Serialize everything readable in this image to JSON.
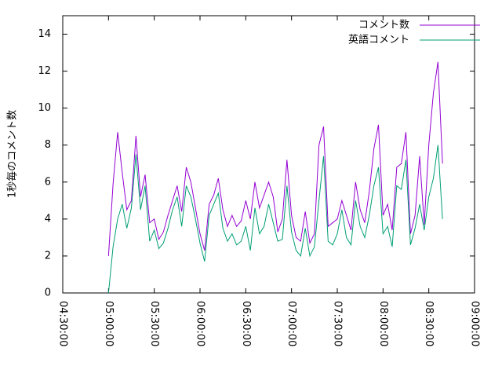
{
  "chart_data": {
    "type": "line",
    "ylabel": "1秒毎のコメント数",
    "x": [
      "05:00:00",
      "05:03:00",
      "05:06:00",
      "05:09:00",
      "05:12:00",
      "05:15:00",
      "05:18:00",
      "05:21:00",
      "05:24:00",
      "05:27:00",
      "05:30:00",
      "05:33:00",
      "05:36:00",
      "05:39:00",
      "05:42:00",
      "05:45:00",
      "05:48:00",
      "05:51:00",
      "05:54:00",
      "05:57:00",
      "06:00:00",
      "06:03:00",
      "06:06:00",
      "06:09:00",
      "06:12:00",
      "06:15:00",
      "06:18:00",
      "06:21:00",
      "06:24:00",
      "06:27:00",
      "06:30:00",
      "06:33:00",
      "06:36:00",
      "06:39:00",
      "06:42:00",
      "06:45:00",
      "06:48:00",
      "06:51:00",
      "06:54:00",
      "06:57:00",
      "07:00:00",
      "07:03:00",
      "07:06:00",
      "07:09:00",
      "07:12:00",
      "07:15:00",
      "07:18:00",
      "07:21:00",
      "07:24:00",
      "07:27:00",
      "07:30:00",
      "07:33:00",
      "07:36:00",
      "07:39:00",
      "07:42:00",
      "07:45:00",
      "07:48:00",
      "07:51:00",
      "07:54:00",
      "07:57:00",
      "08:00:00",
      "08:03:00",
      "08:06:00",
      "08:09:00",
      "08:12:00",
      "08:15:00",
      "08:18:00",
      "08:21:00",
      "08:24:00",
      "08:27:00",
      "08:30:00",
      "08:33:00",
      "08:36:00",
      "08:39:00"
    ],
    "series": [
      {
        "name": "コメント数",
        "color": "#9400d3",
        "values": [
          2.0,
          5.9,
          8.7,
          6.5,
          4.5,
          5.0,
          8.5,
          5.2,
          6.4,
          3.8,
          4.0,
          2.9,
          3.3,
          4.2,
          5.0,
          5.8,
          4.4,
          6.8,
          6.0,
          4.6,
          3.2,
          2.3,
          4.8,
          5.3,
          6.2,
          4.5,
          3.6,
          4.2,
          3.6,
          3.9,
          5.0,
          4.0,
          6.0,
          4.6,
          5.3,
          6.0,
          5.2,
          3.3,
          4.0,
          7.2,
          4.2,
          3.0,
          2.8,
          4.4,
          2.7,
          3.2,
          8.0,
          9.0,
          3.6,
          3.8,
          4.0,
          5.0,
          4.2,
          3.4,
          6.0,
          4.5,
          3.8,
          5.5,
          7.8,
          9.1,
          4.2,
          4.8,
          3.4,
          6.8,
          7.0,
          8.7,
          3.2,
          4.2,
          7.4,
          3.7,
          8.0,
          10.8,
          12.5,
          7.0
        ]
      },
      {
        "name": "英語コメント",
        "color": "#009e73",
        "values": [
          0,
          2.5,
          4.0,
          4.8,
          3.5,
          4.6,
          7.5,
          4.5,
          5.8,
          2.8,
          3.4,
          2.4,
          2.7,
          3.5,
          4.5,
          5.2,
          3.6,
          5.8,
          5.2,
          4.0,
          2.7,
          1.7,
          4.2,
          4.8,
          5.4,
          3.5,
          2.8,
          3.2,
          2.6,
          2.8,
          3.6,
          2.3,
          4.6,
          3.2,
          3.6,
          4.8,
          3.8,
          2.8,
          2.9,
          5.8,
          3.3,
          2.3,
          2.0,
          3.5,
          2.0,
          2.5,
          5.0,
          7.4,
          2.8,
          2.6,
          3.2,
          4.5,
          3.0,
          2.6,
          5.0,
          3.6,
          3.0,
          4.2,
          5.8,
          6.8,
          3.2,
          3.6,
          2.5,
          5.8,
          5.6,
          7.2,
          2.6,
          3.5,
          4.8,
          3.4,
          5.2,
          6.2,
          8.0,
          4.0
        ]
      }
    ],
    "xlim": [
      "04:30:00",
      "09:00:00"
    ],
    "xticks": [
      "04:30:00",
      "05:00:00",
      "05:30:00",
      "06:00:00",
      "06:30:00",
      "07:00:00",
      "07:30:00",
      "08:00:00",
      "08:30:00",
      "09:00:00"
    ],
    "ylim": [
      0,
      15
    ],
    "yticks": [
      0,
      2,
      4,
      6,
      8,
      10,
      12,
      14
    ],
    "legend": "top-right"
  }
}
